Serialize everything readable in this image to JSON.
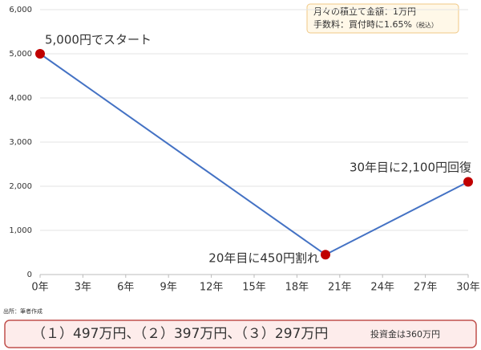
{
  "chart_data": {
    "type": "line",
    "x": [
      0,
      20,
      30
    ],
    "values": [
      5000,
      450,
      2100
    ],
    "color": "#4472c4",
    "marker_color": "#c00000",
    "xlim": [
      0,
      30
    ],
    "xticks": [
      {
        "value": 0,
        "label": "0年"
      },
      {
        "value": 3,
        "label": "3年"
      },
      {
        "value": 6,
        "label": "6年"
      },
      {
        "value": 9,
        "label": "9年"
      },
      {
        "value": 12,
        "label": "12年"
      },
      {
        "value": 15,
        "label": "15年"
      },
      {
        "value": 18,
        "label": "18年"
      },
      {
        "value": 21,
        "label": "21年"
      },
      {
        "value": 24,
        "label": "24年"
      },
      {
        "value": 27,
        "label": "27年"
      },
      {
        "value": 30,
        "label": "30年"
      }
    ],
    "ylim": [
      0,
      6000
    ],
    "yticks": [
      0,
      {
        "value": 1000,
        "label": "1,000"
      },
      {
        "value": 2000,
        "label": "2,000"
      },
      {
        "value": 3000,
        "label": "3,000"
      },
      {
        "value": 4000,
        "label": "4,000"
      },
      {
        "value": 5000,
        "label": "5,000"
      },
      {
        "value": 6000,
        "label": "6,000"
      }
    ],
    "grid": true,
    "annotations": [
      "5,000円でスタート",
      "20年目に450円割れ",
      "30年目に2,100円回復"
    ],
    "note": [
      "月々の積立て金額：1万円",
      "手数料：買付時に1.65%",
      "（税込）"
    ]
  },
  "source": "出所：筆者作成",
  "footer": {
    "results": "（１）497万円、（２）397万円、（３）297万円",
    "investment": "投資金は360万円"
  }
}
